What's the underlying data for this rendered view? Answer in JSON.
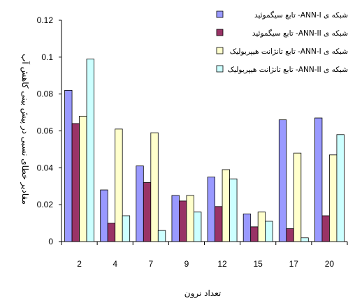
{
  "chart_data": {
    "type": "bar",
    "xlabel": "تعداد نرون",
    "ylabel": "مقادیر خطای نسبی در پیش بینی کاهش آب",
    "categories": [
      "2",
      "4",
      "7",
      "9",
      "12",
      "15",
      "17",
      "20"
    ],
    "ylim": [
      0,
      0.12
    ],
    "y_ticks": [
      "0",
      "0.02",
      "0.04",
      "0.06",
      "0.08",
      "0.1",
      "0.12"
    ],
    "grid": false,
    "legend_position": "top-right",
    "series": [
      {
        "name": "شبکه ی ANN-I- تابع سیگموئید",
        "color": "#9999ff",
        "values": [
          0.082,
          0.028,
          0.041,
          0.025,
          0.035,
          0.015,
          0.066,
          0.067
        ]
      },
      {
        "name": "شبکه ی ANN-II- تابع سیگموئید",
        "color": "#993366",
        "values": [
          0.064,
          0.01,
          0.032,
          0.022,
          0.019,
          0.008,
          0.007,
          0.014
        ]
      },
      {
        "name": "شبکه ی ANN-I- تابع تانژانت هیپربولیک",
        "color": "#ffffcc",
        "values": [
          0.068,
          0.061,
          0.059,
          0.025,
          0.039,
          0.016,
          0.048,
          0.047
        ]
      },
      {
        "name": "شبکه ی ANN-II- تابع تانژانت هیپربولیک",
        "color": "#ccffff",
        "values": [
          0.099,
          0.014,
          0.006,
          0.016,
          0.034,
          0.011,
          0.002,
          0.058
        ]
      }
    ]
  }
}
